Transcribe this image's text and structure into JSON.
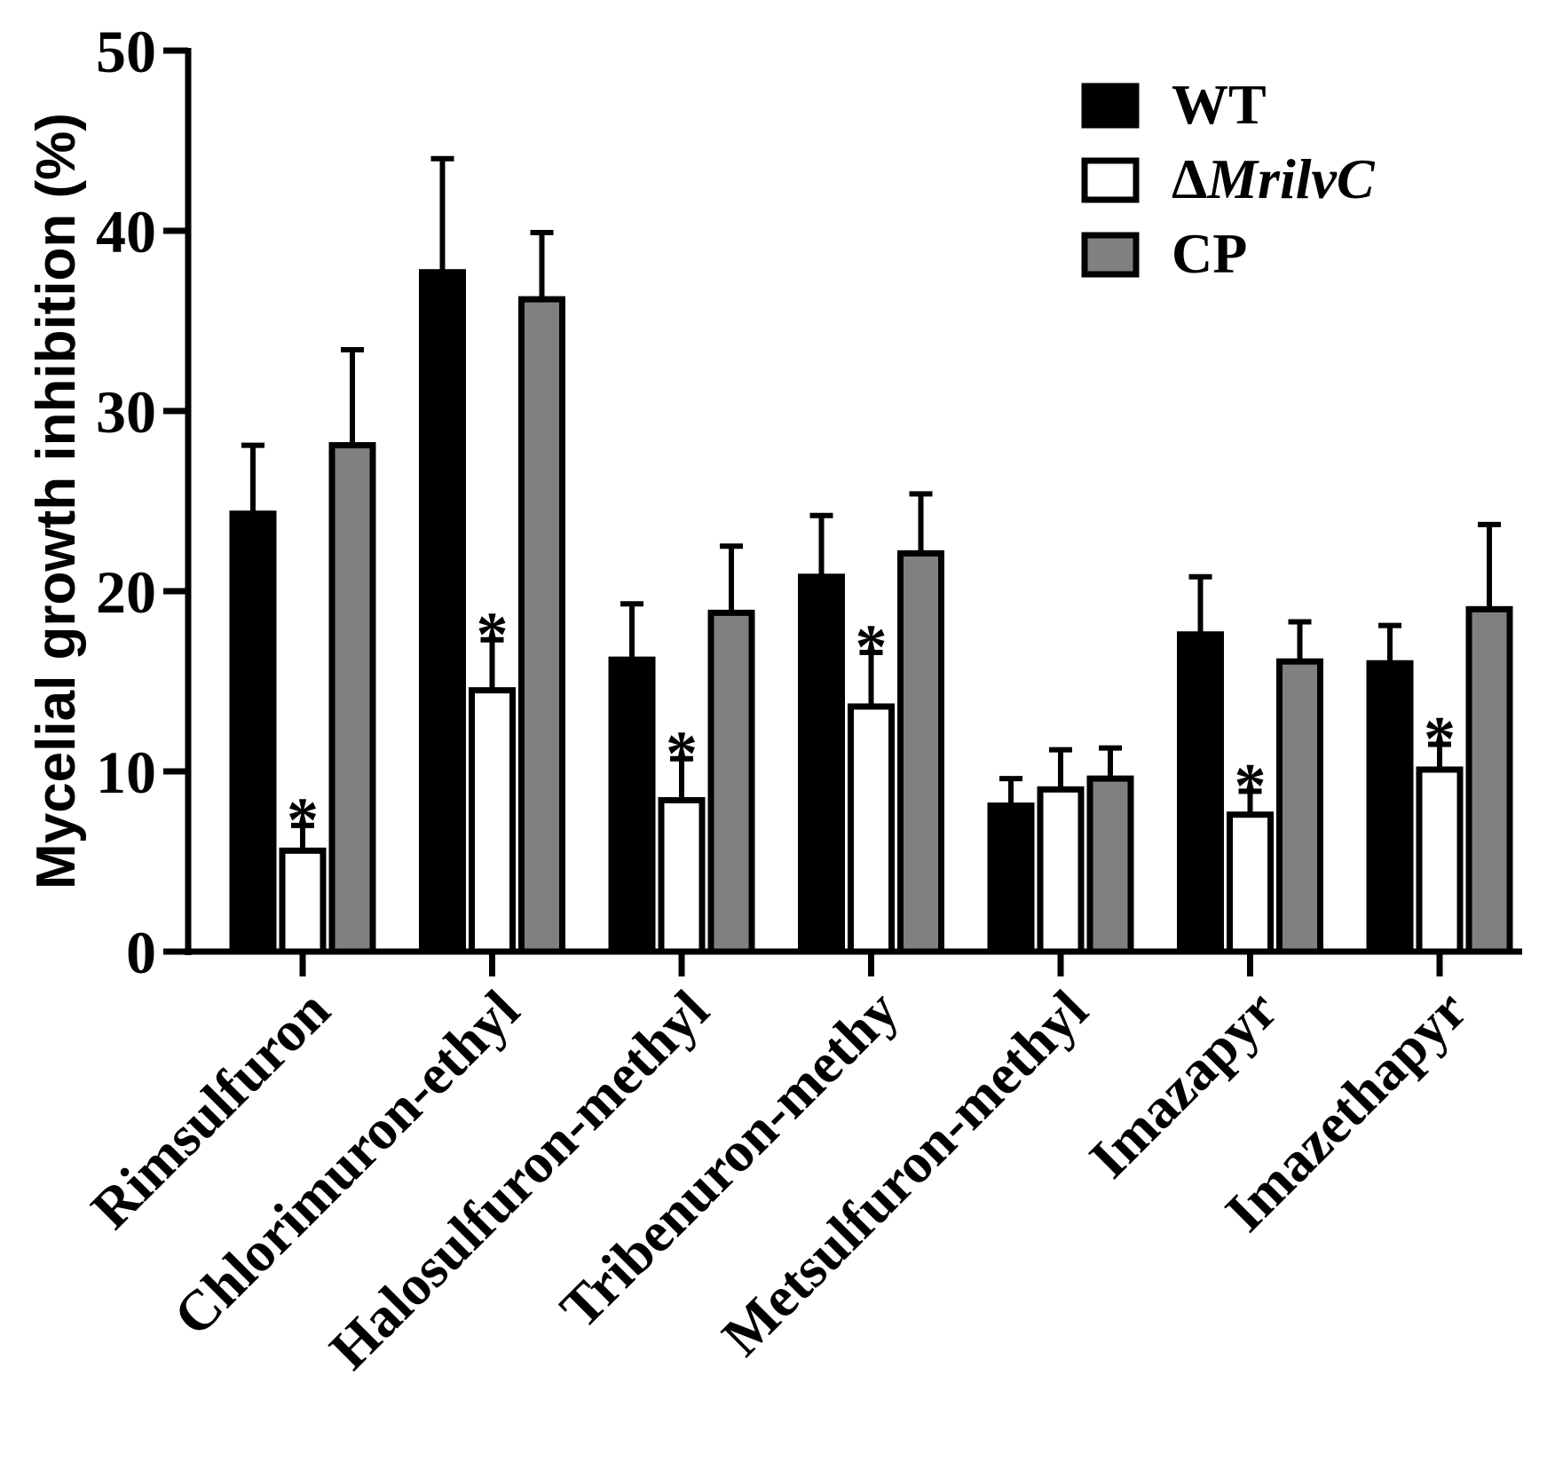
{
  "chart_data": {
    "type": "bar",
    "title": "",
    "xlabel": "",
    "ylabel": "Mycelial growth inhibition (%)",
    "ylim": [
      0,
      50
    ],
    "yticks": [
      "0",
      "10",
      "20",
      "30",
      "40",
      "50"
    ],
    "grid": false,
    "legend_position": "top-right",
    "categories": [
      "Rimsulfuron",
      "Chlorimuron-ethyl",
      "Halosulfuron-methyl",
      "Tribenuron-methy",
      "Metsulfuron-methyl",
      "Imazapyr",
      "Imazethapyr"
    ],
    "series": [
      {
        "name": "WT",
        "legend_prefix": "",
        "legend_italic": "",
        "legend_plain": "WT",
        "fill": "#000000",
        "values": [
          24.3,
          37.7,
          16.2,
          20.8,
          8.1,
          17.6,
          16.0
        ],
        "errors": [
          3.8,
          6.3,
          3.1,
          3.4,
          1.5,
          3.2,
          2.1
        ]
      },
      {
        "name": "ΔMrilvC",
        "legend_prefix": "Δ",
        "legend_italic": "MrilvC",
        "legend_plain": "",
        "fill": "#ffffff",
        "values": [
          5.6,
          14.5,
          8.4,
          13.6,
          9.0,
          7.6,
          10.1
        ],
        "errors": [
          1.4,
          2.8,
          2.3,
          3.0,
          2.2,
          1.3,
          1.4
        ]
      },
      {
        "name": "CP",
        "legend_prefix": "",
        "legend_italic": "",
        "legend_plain": "CP",
        "fill": "#808080",
        "values": [
          28.1,
          36.2,
          18.8,
          22.1,
          9.6,
          16.1,
          19.0
        ],
        "errors": [
          5.3,
          3.7,
          3.7,
          3.3,
          1.7,
          2.2,
          4.7
        ]
      }
    ],
    "significance": {
      "marker": "*",
      "series": "ΔMrilvC",
      "categories": [
        0,
        1,
        2,
        3,
        5,
        6
      ]
    }
  }
}
